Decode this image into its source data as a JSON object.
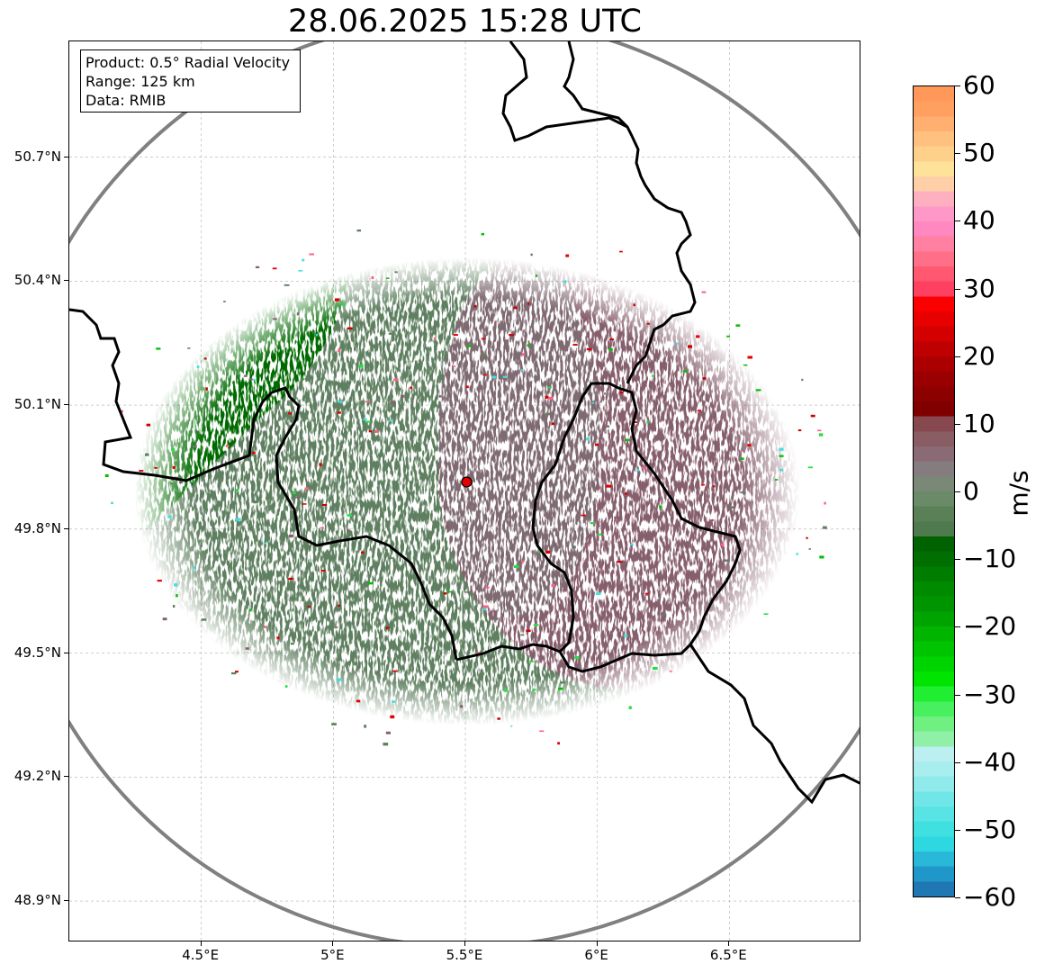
{
  "title": "28.06.2025 15:28 UTC",
  "info": {
    "product": "Product: 0.5° Radial Velocity",
    "range": "Range: 125 km",
    "source": "Data: RMIB"
  },
  "map": {
    "lon_range": [
      4.0,
      7.0
    ],
    "lat_range": [
      48.8,
      50.98
    ],
    "radar_site": {
      "lon": 5.505,
      "lat": 49.914
    },
    "range_ring_km": 125,
    "gridlines": true,
    "lat_ticks": [
      {
        "value": 50.7,
        "label": "50.7°N"
      },
      {
        "value": 50.4,
        "label": "50.4°N"
      },
      {
        "value": 50.1,
        "label": "50.1°N"
      },
      {
        "value": 49.8,
        "label": "49.8°N"
      },
      {
        "value": 49.5,
        "label": "49.5°N"
      },
      {
        "value": 49.2,
        "label": "49.2°N"
      },
      {
        "value": 48.9,
        "label": "48.9°N"
      }
    ],
    "lon_ticks": [
      {
        "value": 4.5,
        "label": "4.5°E"
      },
      {
        "value": 5.0,
        "label": "5°E"
      },
      {
        "value": 5.5,
        "label": "5.5°E"
      },
      {
        "value": 6.0,
        "label": "6°E"
      },
      {
        "value": 6.5,
        "label": "6.5°E"
      }
    ]
  },
  "colorbar": {
    "unit": "m/s",
    "min": -60,
    "max": 60,
    "ticks": [
      {
        "value": 60,
        "label": "60"
      },
      {
        "value": 50,
        "label": "50"
      },
      {
        "value": 40,
        "label": "40"
      },
      {
        "value": 30,
        "label": "30"
      },
      {
        "value": 20,
        "label": "20"
      },
      {
        "value": 10,
        "label": "10"
      },
      {
        "value": 0,
        "label": "0"
      },
      {
        "value": -10,
        "label": "−10"
      },
      {
        "value": -20,
        "label": "−20"
      },
      {
        "value": -30,
        "label": "−30"
      },
      {
        "value": -40,
        "label": "−40"
      },
      {
        "value": -50,
        "label": "−50"
      },
      {
        "value": -60,
        "label": "−60"
      }
    ],
    "colors": [
      "#1f77b4",
      "#1f97c8",
      "#2ab8d8",
      "#2ed8e0",
      "#40e0e0",
      "#58e4e4",
      "#70e6e8",
      "#90eaec",
      "#a8eeee",
      "#bceff0",
      "#90f0a8",
      "#70f080",
      "#48f060",
      "#20ee30",
      "#00e400",
      "#00d400",
      "#00c400",
      "#00b400",
      "#00a400",
      "#009400",
      "#008a00",
      "#007c00",
      "#006e00",
      "#006200",
      "#4e7a4e",
      "#5a8058",
      "#6a8a68",
      "#7a8878",
      "#857c80",
      "#8a6a74",
      "#8a5c64",
      "#884850",
      "#800000",
      "#8c0000",
      "#9a0000",
      "#ac0000",
      "#be0000",
      "#d40000",
      "#e80000",
      "#fa0000",
      "#ff4060",
      "#ff5870",
      "#ff7088",
      "#ff80a0",
      "#ff88c0",
      "#ff98c8",
      "#ffb0c0",
      "#ffd0a8",
      "#ffe29a",
      "#ffd08a",
      "#ffc080",
      "#ffb070",
      "#ffa060",
      "#ff9858"
    ]
  }
}
